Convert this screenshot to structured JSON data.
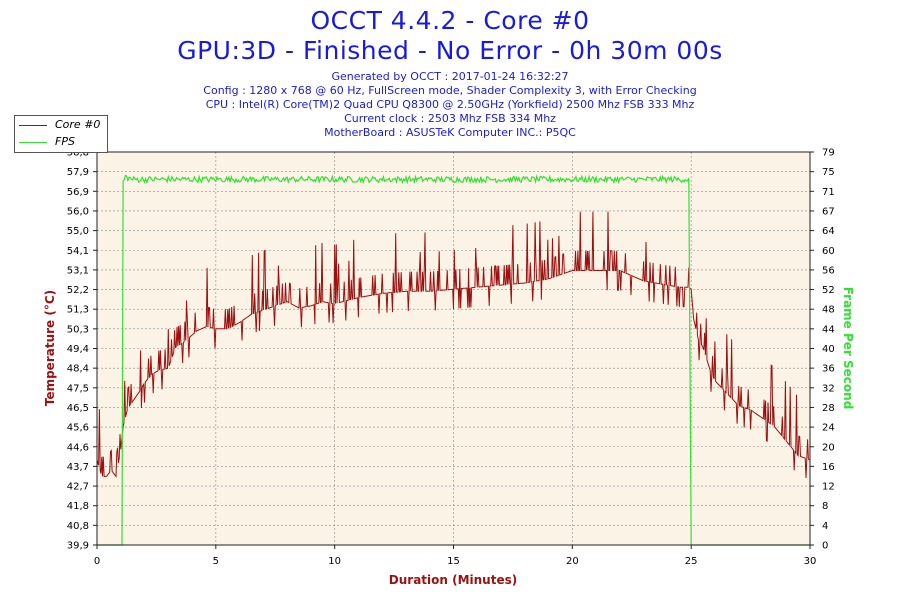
{
  "header": {
    "title_line1": "OCCT 4.4.2 - Core #0",
    "title_line2": "GPU:3D - Finished - No Error - 0h 30m 00s",
    "info_lines": [
      "Generated by OCCT : 2017-01-24 16:32:27",
      "Config : 1280 x 768 @ 60 Hz, FullScreen mode, Shader Complexity 3, with Error Checking",
      "CPU : Intel(R) Core(TM)2 Quad CPU Q8300 @ 2.50GHz (Yorkfield) 2500 Mhz FSB 333 Mhz",
      "Current clock : 2503 Mhz FSB 334 Mhz",
      "MotherBoard : ASUSTeK Computer INC.: P5QC"
    ]
  },
  "colors": {
    "title": "#1a1adc",
    "temperature": "#9b1010",
    "fps": "#33e033",
    "plot_bg": "#fbf4e6",
    "grid": "#8a8a8a"
  },
  "chart_data": {
    "type": "line",
    "xlabel": "Duration (Minutes)",
    "ylabel_left": "Temperature (°C)",
    "ylabel_right": "Frame Per Second",
    "xlim": [
      0,
      30
    ],
    "ylim_left": [
      39.9,
      58.8
    ],
    "ylim_right": [
      0,
      79
    ],
    "x_ticks": [
      "0",
      "5",
      "10",
      "15",
      "20",
      "25",
      "30"
    ],
    "y_left_ticks": [
      "39,9",
      "40,8",
      "41,8",
      "42,7",
      "43,7",
      "44,6",
      "45,6",
      "46,5",
      "47,5",
      "48,4",
      "49,4",
      "50,3",
      "51,3",
      "52,2",
      "53,1",
      "54,1",
      "55,0",
      "56,0",
      "56,9",
      "57,9",
      "58,8"
    ],
    "y_right_ticks": [
      "0",
      "4",
      "8",
      "12",
      "16",
      "20",
      "24",
      "28",
      "32",
      "36",
      "40",
      "44",
      "48",
      "52",
      "56",
      "60",
      "64",
      "67",
      "71",
      "75",
      "79"
    ],
    "grid": true,
    "legend_position": "top-left",
    "series": [
      {
        "name": "Core #0",
        "axis": "left",
        "x": [
          0,
          0.2,
          0.4,
          0.6,
          0.8,
          1.0,
          1.1,
          1.3,
          1.5,
          1.8,
          2.0,
          2.3,
          2.6,
          3.0,
          3.3,
          3.6,
          3.8,
          4.2,
          4.6,
          5.0,
          5.5,
          6.0,
          6.5,
          7.0,
          7.5,
          8.0,
          8.5,
          9.0,
          9.5,
          10.0,
          11.0,
          12.0,
          13.0,
          14.0,
          15.0,
          16.0,
          17.0,
          18.0,
          19.0,
          20.0,
          21.0,
          22.0,
          23.0,
          24.0,
          24.5,
          24.9,
          25.0,
          25.1,
          25.3,
          25.5,
          25.8,
          26.0,
          26.5,
          27.0,
          27.5,
          28.0,
          28.5,
          29.0,
          29.5,
          30.0
        ],
        "y": [
          44.0,
          43.2,
          43.2,
          43.5,
          43.2,
          44.5,
          45.6,
          46.5,
          46.8,
          47.3,
          47.7,
          48.1,
          48.3,
          48.4,
          49.4,
          49.6,
          49.8,
          50.2,
          50.4,
          50.3,
          50.3,
          50.6,
          51.0,
          51.2,
          51.4,
          51.6,
          51.3,
          51.4,
          51.6,
          51.5,
          51.8,
          52.0,
          52.1,
          52.1,
          52.2,
          52.3,
          52.4,
          52.5,
          52.7,
          53.1,
          53.1,
          53.1,
          52.6,
          52.4,
          52.3,
          52.3,
          52.2,
          50.8,
          49.8,
          49.4,
          48.3,
          47.8,
          47.2,
          46.6,
          46.4,
          46.0,
          45.6,
          44.9,
          44.2,
          44.0
        ]
      },
      {
        "name": "FPS",
        "axis": "right",
        "x": [
          0,
          1.05,
          1.1,
          1.2,
          1.5,
          2.0,
          3.0,
          5.0,
          10.0,
          15.0,
          20.0,
          24.0,
          24.9,
          25.0,
          30.0
        ],
        "y": [
          0,
          0,
          73,
          74,
          73.5,
          73.5,
          73.5,
          73.5,
          73.5,
          73.5,
          73.5,
          73.5,
          73.5,
          0,
          0
        ]
      }
    ]
  }
}
